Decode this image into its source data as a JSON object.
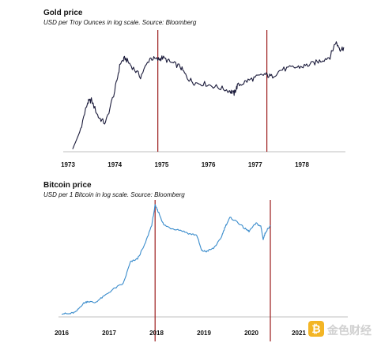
{
  "chart_data": [
    {
      "type": "line",
      "title": "Gold price",
      "subtitle": "USD per Troy Ounces in log scale. Source: Bloomberg",
      "x_axis": {
        "type": "year",
        "ticks": [
          "1973",
          "1974",
          "1975",
          "1976",
          "1977",
          "1978"
        ],
        "range": [
          1972.8,
          1978.95
        ]
      },
      "y_axis": {
        "scale": "log",
        "labels_shown": false,
        "range": [
          64,
          250
        ]
      },
      "grid": false,
      "line_color": "#1a1a3a",
      "vertical_markers": [
        {
          "x": 1974.92,
          "color": "#9b1b1b"
        },
        {
          "x": 1977.25,
          "color": "#9b1b1b"
        }
      ],
      "series": [
        {
          "x": [
            1973.1,
            1973.25,
            1973.42,
            1973.5,
            1973.65,
            1973.8,
            1974.0,
            1974.12,
            1974.22,
            1974.35,
            1974.55,
            1974.75,
            1974.92,
            1975.02,
            1975.2,
            1975.4,
            1975.55,
            1975.7,
            1975.95,
            1976.2,
            1976.45,
            1976.55,
            1976.62,
            1976.8,
            1977.0,
            1977.2,
            1977.35,
            1977.55,
            1977.8,
            1978.0,
            1978.2,
            1978.4,
            1978.6,
            1978.72,
            1978.82,
            1978.9
          ],
          "y": [
            66,
            80,
            112,
            115,
            95,
            88,
            128,
            175,
            185,
            170,
            150,
            185,
            182,
            186,
            176,
            168,
            148,
            140,
            138,
            133,
            128,
            124,
            135,
            142,
            148,
            154,
            150,
            162,
            166,
            168,
            173,
            180,
            188,
            222,
            205,
            208
          ]
        }
      ]
    },
    {
      "type": "line",
      "title": "Bitcoin price",
      "subtitle": "USD per 1 Bitcoin in log scale. Source: Bloomberg",
      "x_axis": {
        "type": "year",
        "ticks": [
          "2016",
          "2017",
          "2018",
          "2019",
          "2020",
          "2021"
        ],
        "range": [
          2015.98,
          2021.0
        ]
      },
      "y_axis": {
        "scale": "log",
        "labels_shown": false,
        "range": [
          380,
          20000
        ]
      },
      "grid": false,
      "line_color": "#3a8ccc",
      "vertical_markers": [
        {
          "x": 2017.97,
          "color": "#9b1b1b"
        },
        {
          "x": 2020.4,
          "color": "#9b1b1b"
        }
      ],
      "series": [
        {
          "x": [
            2016.0,
            2016.15,
            2016.3,
            2016.45,
            2016.55,
            2016.7,
            2016.9,
            2017.1,
            2017.3,
            2017.45,
            2017.6,
            2017.75,
            2017.9,
            2017.97,
            2018.05,
            2018.15,
            2018.3,
            2018.5,
            2018.7,
            2018.85,
            2018.95,
            2019.05,
            2019.2,
            2019.35,
            2019.45,
            2019.55,
            2019.7,
            2019.85,
            2019.95,
            2020.1,
            2020.2,
            2020.25,
            2020.3,
            2020.4
          ],
          "y": [
            430,
            420,
            450,
            600,
            650,
            620,
            780,
            1000,
            1200,
            2500,
            2800,
            4500,
            9000,
            17500,
            13500,
            9000,
            8000,
            7500,
            6600,
            6300,
            3700,
            3600,
            4000,
            5500,
            8500,
            11500,
            10000,
            8000,
            7200,
            9500,
            8500,
            5500,
            7000,
            8800
          ]
        }
      ]
    }
  ],
  "watermark": {
    "badge": "₿",
    "text": "金色财经"
  }
}
